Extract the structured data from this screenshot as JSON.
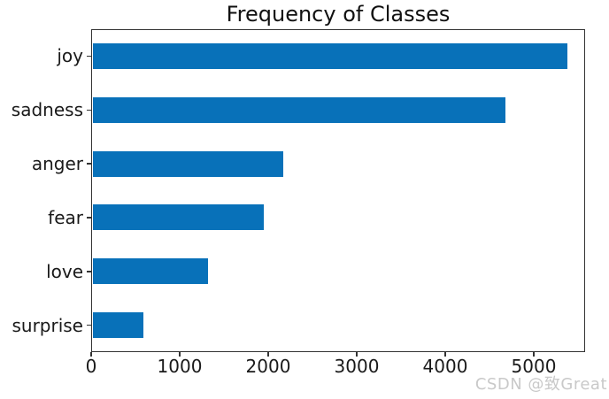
{
  "watermark": "CSDN @致Great",
  "colors": {
    "bar": "#0871b9",
    "spine": "#333333",
    "text": "#1a1a1a",
    "watermark": "#c9c9c9",
    "background": "#ffffff"
  },
  "chart_data": {
    "type": "bar",
    "orientation": "horizontal",
    "title": "Frequency of Classes",
    "categories": [
      "joy",
      "sadness",
      "anger",
      "fear",
      "love",
      "surprise"
    ],
    "values": [
      5362,
      4666,
      2159,
      1937,
      1304,
      572
    ],
    "xlabel": "",
    "ylabel": "",
    "xlim": [
      0,
      5580
    ],
    "xticks": [
      0,
      1000,
      2000,
      3000,
      4000,
      5000
    ],
    "xtick_labels": [
      "0",
      "1000",
      "2000",
      "3000",
      "4000",
      "5000"
    ],
    "grid": false,
    "legend": false,
    "bar_order_top_to_bottom": true
  }
}
